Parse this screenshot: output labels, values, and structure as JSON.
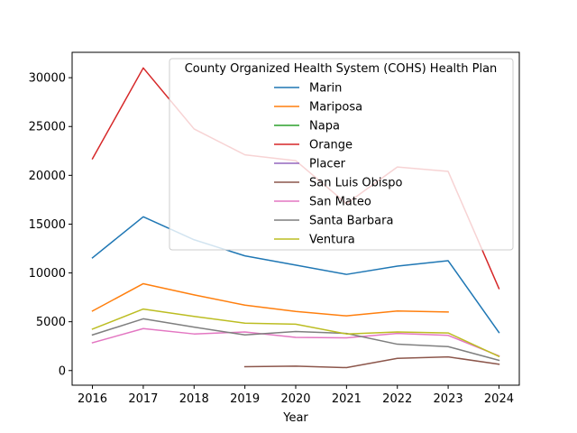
{
  "chart_data": {
    "type": "line",
    "title": "",
    "xlabel": "Year",
    "ylabel": "",
    "x": [
      2016,
      2017,
      2018,
      2019,
      2020,
      2021,
      2022,
      2023,
      2024
    ],
    "xlim": [
      2015.6,
      2024.4
    ],
    "ylim": [
      -1500,
      32600
    ],
    "yticks": [
      0,
      5000,
      10000,
      15000,
      20000,
      25000,
      30000
    ],
    "grid": false,
    "legend": {
      "title": "County Organized Health System (COHS) Health Plan",
      "placement": "upper right"
    },
    "series": [
      {
        "name": "Marin",
        "color": "#1f77b4",
        "values": [
          11550,
          15750,
          13400,
          11750,
          10800,
          9850,
          10700,
          11250,
          3900
        ]
      },
      {
        "name": "Mariposa",
        "color": "#ff7f0e",
        "values": [
          6100,
          8900,
          7750,
          6700,
          6050,
          5600,
          6100,
          6000,
          null
        ]
      },
      {
        "name": "Napa",
        "color": "#2ca02c",
        "values": [
          null,
          null,
          null,
          null,
          null,
          null,
          null,
          null,
          null
        ]
      },
      {
        "name": "Orange",
        "color": "#d62728",
        "values": [
          21700,
          31000,
          24750,
          22100,
          21500,
          17100,
          20850,
          20400,
          8400
        ]
      },
      {
        "name": "Placer",
        "color": "#9467bd",
        "values": [
          null,
          null,
          null,
          null,
          null,
          null,
          null,
          null,
          null
        ]
      },
      {
        "name": "San Luis Obispo",
        "color": "#8c564b",
        "values": [
          null,
          null,
          null,
          400,
          450,
          300,
          1250,
          1400,
          650
        ]
      },
      {
        "name": "San Mateo",
        "color": "#e377c2",
        "values": [
          2850,
          4300,
          3750,
          3950,
          3400,
          3350,
          3800,
          3600,
          1500
        ]
      },
      {
        "name": "Santa Barbara",
        "color": "#7f7f7f",
        "values": [
          3650,
          5300,
          4450,
          3650,
          4000,
          3800,
          2700,
          2450,
          1050
        ]
      },
      {
        "name": "Ventura",
        "color": "#bcbd22",
        "values": [
          4250,
          6300,
          5550,
          4850,
          4750,
          3750,
          3950,
          3850,
          1450
        ]
      }
    ]
  }
}
